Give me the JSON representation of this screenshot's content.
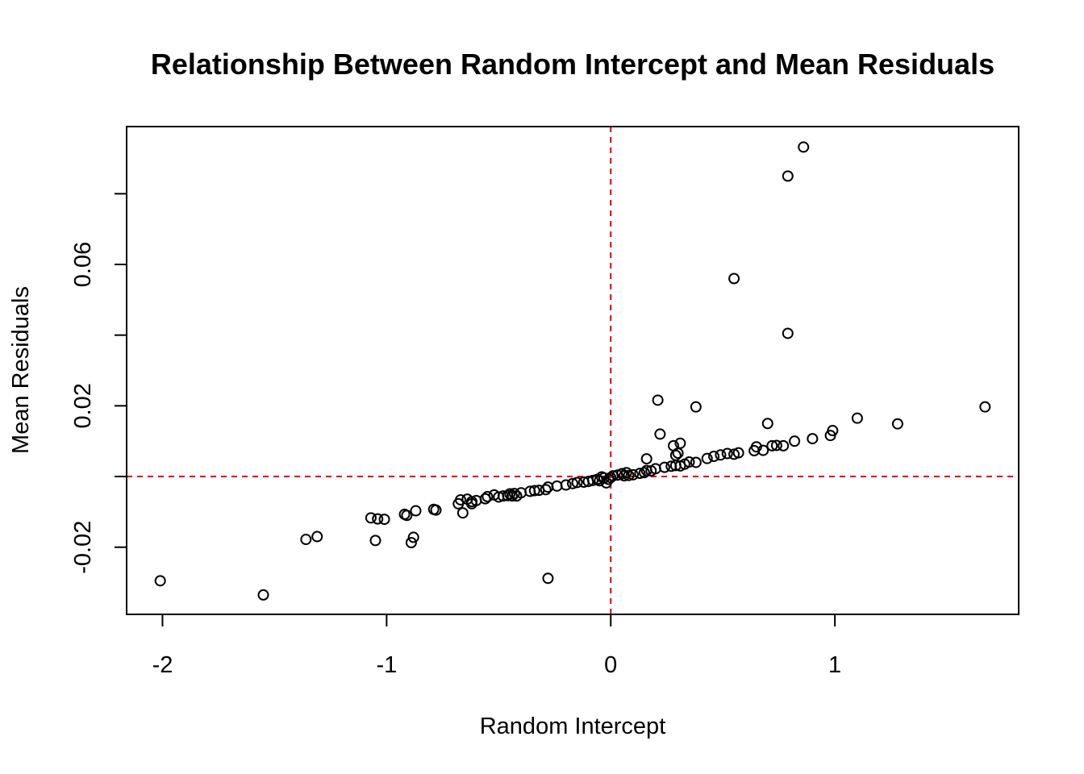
{
  "chart_data": {
    "type": "scatter",
    "title": "Relationship Between Random Intercept and Mean Residuals",
    "xlabel": "Random Intercept",
    "ylabel": "Mean Residuals",
    "xlim": [
      -2.16,
      1.82
    ],
    "ylim": [
      -0.039,
      0.099
    ],
    "x_ticks": [
      -2,
      -1,
      0,
      1
    ],
    "x_tick_labels": [
      "-2",
      "-1",
      "0",
      "1"
    ],
    "y_ticks": [
      -0.02,
      0.0,
      0.02,
      0.04,
      0.06,
      0.08
    ],
    "y_tick_labels": [
      "-0.02",
      "",
      "0.02",
      "",
      "0.06",
      ""
    ],
    "reference_lines": [
      {
        "orientation": "vertical",
        "value": 0,
        "color": "#dd0000",
        "style": "dashed"
      },
      {
        "orientation": "horizontal",
        "value": 0,
        "color": "#dd0000",
        "style": "dashed"
      }
    ],
    "grid": false,
    "legend": "none",
    "marker": "open-circle",
    "marker_color": "#000000",
    "points": [
      [
        -2.01,
        -0.0295
      ],
      [
        -1.55,
        -0.0335
      ],
      [
        -1.36,
        -0.0178
      ],
      [
        -1.31,
        -0.017
      ],
      [
        -1.07,
        -0.0117
      ],
      [
        -1.04,
        -0.012
      ],
      [
        -1.01,
        -0.0121
      ],
      [
        -1.05,
        -0.0181
      ],
      [
        -0.91,
        -0.011
      ],
      [
        -0.92,
        -0.0107
      ],
      [
        -0.87,
        -0.0097
      ],
      [
        -0.88,
        -0.0172
      ],
      [
        -0.89,
        -0.0187
      ],
      [
        -0.78,
        -0.0095
      ],
      [
        -0.79,
        -0.0093
      ],
      [
        -0.68,
        -0.0077
      ],
      [
        -0.67,
        -0.0066
      ],
      [
        -0.66,
        -0.0103
      ],
      [
        -0.64,
        -0.0064
      ],
      [
        -0.62,
        -0.0071
      ],
      [
        -0.62,
        -0.0077
      ],
      [
        -0.6,
        -0.0068
      ],
      [
        -0.56,
        -0.0063
      ],
      [
        -0.55,
        -0.0057
      ],
      [
        -0.52,
        -0.0052
      ],
      [
        -0.5,
        -0.0058
      ],
      [
        -0.48,
        -0.0055
      ],
      [
        -0.46,
        -0.0054
      ],
      [
        -0.45,
        -0.0049
      ],
      [
        -0.43,
        -0.0048
      ],
      [
        -0.42,
        -0.0055
      ],
      [
        -0.44,
        -0.0055
      ],
      [
        -0.4,
        -0.0046
      ],
      [
        -0.36,
        -0.0042
      ],
      [
        -0.34,
        -0.004
      ],
      [
        -0.32,
        -0.0039
      ],
      [
        -0.29,
        -0.0037
      ],
      [
        -0.28,
        -0.003
      ],
      [
        -0.24,
        -0.0027
      ],
      [
        -0.2,
        -0.0024
      ],
      [
        -0.17,
        -0.002
      ],
      [
        -0.15,
        -0.0017
      ],
      [
        -0.12,
        -0.0016
      ],
      [
        -0.1,
        -0.0014
      ],
      [
        -0.08,
        -0.0011
      ],
      [
        -0.06,
        -0.0008
      ],
      [
        -0.05,
        -0.0012
      ],
      [
        -0.04,
        -0.0001
      ],
      [
        -0.03,
        -0.0004
      ],
      [
        -0.02,
        -0.0018
      ],
      [
        -0.01,
        -0.0008
      ],
      [
        0.0,
        -0.0003
      ],
      [
        0.01,
        0.0002
      ],
      [
        0.03,
        0.0004
      ],
      [
        0.05,
        0.0008
      ],
      [
        0.06,
        0.0002
      ],
      [
        0.08,
        0.0003
      ],
      [
        0.1,
        0.0005
      ],
      [
        0.13,
        0.0009
      ],
      [
        0.15,
        0.0011
      ],
      [
        0.16,
        0.0017
      ],
      [
        0.18,
        0.0016
      ],
      [
        0.2,
        0.0022
      ],
      [
        0.24,
        0.0026
      ],
      [
        0.27,
        0.0029
      ],
      [
        0.29,
        0.0031
      ],
      [
        0.31,
        0.003
      ],
      [
        0.33,
        0.0035
      ],
      [
        0.35,
        0.0041
      ],
      [
        0.38,
        0.004
      ],
      [
        0.43,
        0.0051
      ],
      [
        0.46,
        0.0057
      ],
      [
        0.49,
        0.0061
      ],
      [
        0.52,
        0.0065
      ],
      [
        0.55,
        0.0063
      ],
      [
        0.57,
        0.0067
      ],
      [
        0.64,
        0.0073
      ],
      [
        0.65,
        0.0084
      ],
      [
        0.68,
        0.0074
      ],
      [
        0.72,
        0.0087
      ],
      [
        0.74,
        0.0088
      ],
      [
        0.77,
        0.0087
      ],
      [
        0.82,
        0.01
      ],
      [
        0.9,
        0.0107
      ],
      [
        0.98,
        0.0116
      ],
      [
        0.99,
        0.013
      ],
      [
        1.1,
        0.0165
      ],
      [
        1.28,
        0.0149
      ],
      [
        1.67,
        0.0197
      ],
      [
        0.7,
        0.015
      ],
      [
        0.38,
        0.0197
      ],
      [
        0.21,
        0.0216
      ],
      [
        0.22,
        0.012
      ],
      [
        0.28,
        0.0087
      ],
      [
        0.31,
        0.0094
      ],
      [
        0.29,
        0.006
      ],
      [
        0.3,
        0.0066
      ],
      [
        0.16,
        0.005
      ],
      [
        0.07,
        0.0011
      ],
      [
        -0.28,
        -0.0288
      ],
      [
        0.55,
        0.056
      ],
      [
        0.79,
        0.0405
      ],
      [
        0.79,
        0.085
      ],
      [
        0.86,
        0.0932
      ]
    ]
  }
}
